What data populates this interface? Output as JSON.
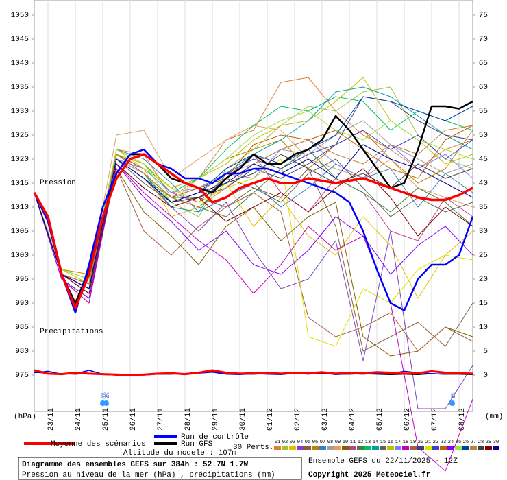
{
  "chart_data": {
    "type": "line",
    "labels": {
      "pressure": "Pression",
      "precip": "Précipitations",
      "yunit": "(hPa)",
      "y2unit": "(mm)",
      "perts": "30 Perts.",
      "altitude": "Altitude du modele : 107m",
      "title": "Diagramme des ensembles GEFS sur 384h : 52.7N 1.7W",
      "subtitle": "Pression au niveau de la mer (hPa) , précipitations (mm)",
      "run": "Ensemble GEFS du 22/11/2025 - 12Z",
      "copyright": "Copyright 2025 Meteociel.fr"
    },
    "xlim": [
      0,
      384
    ],
    "xticks": [
      {
        "value": 12,
        "label": "23/11"
      },
      {
        "value": 36,
        "label": "24/11"
      },
      {
        "value": 60,
        "label": "25/11"
      },
      {
        "value": 84,
        "label": "26/11"
      },
      {
        "value": 108,
        "label": "27/11"
      },
      {
        "value": 132,
        "label": "28/11"
      },
      {
        "value": 156,
        "label": "29/11"
      },
      {
        "value": 180,
        "label": "30/11"
      },
      {
        "value": 204,
        "label": "01/12"
      },
      {
        "value": 228,
        "label": "02/12"
      },
      {
        "value": 252,
        "label": "03/12"
      },
      {
        "value": 276,
        "label": "04/12"
      },
      {
        "value": 300,
        "label": "05/12"
      },
      {
        "value": 324,
        "label": "06/12"
      },
      {
        "value": 348,
        "label": "07/12"
      },
      {
        "value": 372,
        "label": "08/12"
      }
    ],
    "ylim": [
      975,
      1050
    ],
    "yticks": [
      975,
      980,
      985,
      990,
      995,
      1000,
      1005,
      1010,
      1015,
      1020,
      1025,
      1030,
      1035,
      1040,
      1045,
      1050
    ],
    "y2lim": [
      0,
      75
    ],
    "y2ticks": [
      0,
      5,
      10,
      15,
      20,
      25,
      30,
      35,
      40,
      45,
      50,
      55,
      60,
      65,
      70,
      75
    ],
    "x": [
      0,
      12,
      24,
      36,
      48,
      60,
      72,
      84,
      96,
      108,
      120,
      132,
      144,
      156,
      168,
      180,
      192,
      204,
      216,
      228,
      240,
      252,
      264,
      276,
      288,
      300,
      312,
      324,
      336,
      348,
      360,
      372,
      384
    ],
    "series": [
      {
        "name": "Moyenne des scénarios",
        "color": "#ff0000",
        "values": [
          1013,
          1008,
          996,
          989,
          996,
          1008,
          1016,
          1020,
          1021,
          1019,
          1017,
          1015,
          1014,
          1011,
          1012,
          1014,
          1015,
          1016,
          1015,
          1015,
          1016,
          1015.5,
          1015,
          1015.5,
          1016,
          1015,
          1014,
          1013,
          1012,
          1011.5,
          1011.5,
          1012.5,
          1014
        ],
        "precip_values": [
          1,
          0.3,
          0.2,
          0.5,
          0.3,
          0.2,
          0.1,
          0,
          0.1,
          0.3,
          0.4,
          0.2,
          0.5,
          1,
          0.5,
          0.3,
          0.4,
          0.5,
          0.3,
          0.5,
          0.4,
          0.6,
          0.3,
          0.5,
          0.4,
          0.6,
          0.5,
          0.3,
          0.4,
          0.8,
          0.5,
          0.4,
          0.3
        ]
      },
      {
        "name": "Run de contrôle",
        "color": "#0000ff",
        "values": [
          1013,
          1007,
          996,
          988,
          998,
          1010,
          1017,
          1021,
          1022,
          1019,
          1018,
          1016,
          1016,
          1015,
          1017,
          1017,
          1018,
          1018,
          1017,
          1016,
          1015,
          1014,
          1013,
          1011,
          1005,
          997,
          990,
          988.5,
          995,
          998,
          998,
          1000,
          1008
        ],
        "precip_values": [
          0.5,
          0.8,
          0.2,
          0.3,
          1,
          0.2,
          0,
          0,
          0,
          0.2,
          0.3,
          0.1,
          0.4,
          0.6,
          0.2,
          0.1,
          0.3,
          0.2,
          0.1,
          0.4,
          0.2,
          0.5,
          0.1,
          0.3,
          0.2,
          0.4,
          0.3,
          0.8,
          0.5,
          0.3,
          0.2,
          0.4,
          0.2
        ]
      },
      {
        "name": "Run GFS",
        "color": "#000000",
        "values": [
          1013,
          1008,
          996,
          990,
          997,
          1008,
          1017,
          1021,
          1021,
          1019,
          1016,
          1015,
          1014,
          1013,
          1016,
          1018,
          1021,
          1019,
          1019,
          1021,
          1022,
          1024,
          1029,
          1026,
          1022,
          1018,
          1014,
          1015,
          1022,
          1031,
          1031,
          1030.5,
          1032
        ],
        "precip_values": [
          0.6,
          0.4,
          0.3,
          0.2,
          0.4,
          0.1,
          0,
          0,
          0.1,
          0.2,
          0.2,
          0.3,
          0.6,
          0.8,
          0.3,
          0.2,
          0.2,
          0.3,
          0.2,
          0.3,
          0.5,
          0.3,
          0.2,
          0.2,
          0.3,
          0.2,
          0.1,
          0.2,
          0.1,
          0.3,
          0.2,
          0.2,
          0.1
        ]
      }
    ],
    "perturbations": {
      "x": [
        0,
        24,
        48,
        72,
        96,
        120,
        144,
        168,
        192,
        216,
        240,
        264,
        288,
        312,
        336,
        360,
        384
      ],
      "series": [
        {
          "name": "01",
          "color": "#e08030",
          "values": [
            1013,
            996,
            993,
            1022,
            1021,
            1012,
            1016,
            1024,
            1026,
            1036,
            1037,
            1030,
            1025,
            1022,
            1018,
            1022,
            1024
          ]
        },
        {
          "name": "02",
          "color": "#a0c040",
          "values": [
            1013,
            997,
            995,
            1020,
            1017,
            1011,
            1008,
            1018,
            1022,
            1027,
            1031,
            1030,
            1034,
            1035,
            1025,
            1020,
            1018
          ]
        },
        {
          "name": "03",
          "color": "#e0c000",
          "values": [
            1013,
            996,
            994,
            1021,
            1018,
            1008,
            1010,
            1015,
            1006,
            1012,
            1004,
            1000,
            1008,
            1002,
            991,
            1000,
            1005
          ]
        },
        {
          "name": "04",
          "color": "#8040c0",
          "values": [
            1013,
            995,
            990,
            1019,
            1014,
            1010,
            1005,
            1011,
            1001,
            993,
            995,
            1003,
            978,
            1005,
            968,
            968,
            977
          ]
        },
        {
          "name": "05",
          "color": "#806040",
          "values": [
            1013,
            996,
            992,
            1020,
            1016,
            1010,
            1012,
            1016,
            1014,
            1012,
            1018,
            1006,
            980,
            983,
            986,
            981,
            990
          ]
        },
        {
          "name": "06",
          "color": "#c08000",
          "values": [
            1013,
            997,
            996,
            1021,
            1018,
            1014,
            1016,
            1020,
            1022,
            1024,
            1018,
            1023,
            1026,
            1020,
            1015,
            1018,
            1026
          ]
        },
        {
          "name": "07",
          "color": "#4080c0",
          "values": [
            1013,
            996,
            994,
            1022,
            1020,
            1015,
            1009,
            1012,
            1015,
            1010,
            1014,
            1019,
            1016,
            1018,
            1010,
            1017,
            1013
          ]
        },
        {
          "name": "08",
          "color": "#a0a0a0",
          "values": [
            1013,
            996,
            993,
            1020,
            1017,
            1012,
            1014,
            1017,
            1019,
            1022,
            1021,
            1025,
            1028,
            1023,
            1020,
            1017,
            1019
          ]
        },
        {
          "name": "09",
          "color": "#e0a060",
          "values": [
            1013,
            997,
            995,
            1025,
            1026,
            1016,
            1020,
            1024,
            1027,
            1026,
            1020,
            1018,
            1016,
            1020,
            1014,
            1012,
            1010
          ]
        },
        {
          "name": "10",
          "color": "#806000",
          "values": [
            1013,
            995,
            991,
            1018,
            1009,
            1004,
            998,
            1006,
            1010,
            1003,
            1008,
            1011,
            983,
            979,
            980,
            985,
            983
          ]
        },
        {
          "name": "11",
          "color": "#c04080",
          "values": [
            1013,
            996,
            993,
            1021,
            1018,
            1013,
            1011,
            1016,
            1021,
            1013,
            1009,
            1016,
            1013,
            1005,
            1003,
            1012,
            1008
          ]
        },
        {
          "name": "12",
          "color": "#408040",
          "values": [
            1013,
            996,
            994,
            1020,
            1016,
            1012,
            1010,
            1008,
            1013,
            1018,
            1022,
            1016,
            1013,
            1009,
            1014,
            1011,
            1006
          ]
        },
        {
          "name": "13",
          "color": "#00c060",
          "values": [
            1013,
            997,
            995,
            1022,
            1019,
            1013,
            1016,
            1022,
            1027,
            1031,
            1030,
            1033,
            1032,
            1026,
            1030,
            1028,
            1026
          ]
        },
        {
          "name": "14",
          "color": "#00a0a0",
          "values": [
            1013,
            996,
            993,
            1021,
            1017,
            1010,
            1009,
            1017,
            1021,
            1024,
            1028,
            1034,
            1035,
            1033,
            1029,
            1025,
            1022
          ]
        },
        {
          "name": "15",
          "color": "#606060",
          "values": [
            1013,
            996,
            992,
            1020,
            1015,
            1011,
            1012,
            1010,
            1014,
            1011,
            1017,
            1020,
            1014,
            1008,
            1012,
            1009,
            1011
          ]
        },
        {
          "name": "16",
          "color": "#c0c000",
          "values": [
            1013,
            997,
            994,
            1021,
            1019,
            1014,
            1016,
            1019,
            1024,
            1027,
            1028,
            1032,
            1037,
            1028,
            1024,
            1019,
            1021
          ]
        },
        {
          "name": "17",
          "color": "#8080ff",
          "values": [
            1013,
            996,
            993,
            1020,
            1018,
            1013,
            1014,
            1017,
            1016,
            1022,
            1024,
            1019,
            1016,
            1023,
            1018,
            1021,
            1016
          ]
        },
        {
          "name": "18",
          "color": "#c000c0",
          "values": [
            1013,
            995,
            990,
            1019,
            1013,
            1008,
            1003,
            999,
            992,
            998,
            1006,
            1001,
            1004,
            990,
            960,
            955,
            970
          ]
        },
        {
          "name": "19",
          "color": "#a06040",
          "values": [
            1013,
            996,
            993,
            1018,
            1005,
            1000,
            1006,
            1010,
            1013,
            1009,
            987,
            983,
            985,
            988,
            980,
            985,
            982
          ]
        },
        {
          "name": "20",
          "color": "#404080",
          "values": [
            1013,
            996,
            994,
            1021,
            1017,
            1012,
            1012,
            1014,
            1018,
            1016,
            1019,
            1023,
            1033,
            1032,
            1028,
            1025,
            1024
          ]
        },
        {
          "name": "21",
          "color": "#e0e000",
          "values": [
            1013,
            997,
            995,
            1022,
            1018,
            1014,
            1011,
            1014,
            1016,
            1020,
            983,
            981,
            993,
            990,
            997,
            1000,
            999
          ]
        },
        {
          "name": "22",
          "color": "#4040c0",
          "values": [
            1013,
            996,
            993,
            1020,
            1016,
            1011,
            1013,
            1017,
            1020,
            1018,
            1021,
            1023,
            1026,
            1022,
            1025,
            1020,
            1024
          ]
        },
        {
          "name": "23",
          "color": "#c06000",
          "values": [
            1013,
            996,
            994,
            1021,
            1017,
            1012,
            1014,
            1016,
            1023,
            1025,
            1024,
            1026,
            1022,
            1018,
            1016,
            1024,
            1027
          ]
        },
        {
          "name": "24",
          "color": "#8000ff",
          "values": [
            1013,
            995,
            991,
            1019,
            1012,
            1007,
            1001,
            1005,
            998,
            996,
            1001,
            1008,
            1004,
            996,
            1002,
            1006,
            1000
          ]
        },
        {
          "name": "25",
          "color": "#a0e040",
          "values": [
            1013,
            997,
            995,
            1022,
            1019,
            1011,
            1016,
            1020,
            1025,
            1028,
            1030,
            1026,
            1024,
            1028,
            1024,
            1022,
            1020
          ]
        },
        {
          "name": "26",
          "color": "#0040a0",
          "values": [
            1013,
            996,
            993,
            1020,
            1016,
            1011,
            1013,
            1018,
            1021,
            1019,
            1022,
            1025,
            1033,
            1032,
            1030,
            1028,
            1031
          ]
        },
        {
          "name": "27",
          "color": "#c08040",
          "values": [
            1013,
            996,
            994,
            1021,
            1017,
            1012,
            1010,
            1014,
            1019,
            1022,
            1024,
            1021,
            1019,
            1023,
            1021,
            1026,
            1027
          ]
        },
        {
          "name": "28",
          "color": "#404040",
          "values": [
            1013,
            996,
            993,
            1020,
            1016,
            1011,
            1012,
            1015,
            1017,
            1021,
            1018,
            1015,
            1017,
            1014,
            1019,
            1016,
            1018
          ]
        },
        {
          "name": "29",
          "color": "#800000",
          "values": [
            1013,
            996,
            992,
            1019,
            1014,
            1010,
            1012,
            1007,
            1010,
            1013,
            1009,
            1014,
            1018,
            1012,
            1004,
            1010,
            1006
          ]
        },
        {
          "name": "30",
          "color": "#0000a0",
          "values": [
            1013,
            996,
            993,
            1020,
            1016,
            1011,
            1013,
            1015,
            1019,
            1017,
            1020,
            1016,
            1023,
            1020,
            1018,
            1015,
            1012
          ]
        }
      ]
    },
    "snow": [
      {
        "x": 60,
        "label": "6%"
      },
      {
        "x": 63,
        "label": "3%"
      },
      {
        "x": 366,
        "label": "3%"
      }
    ]
  }
}
